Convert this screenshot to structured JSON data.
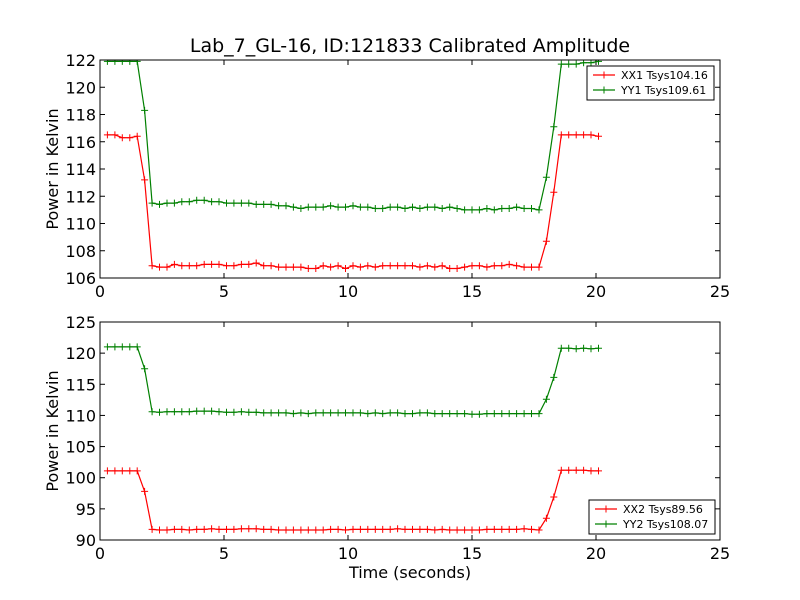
{
  "chart_data": [
    {
      "type": "line",
      "title": "Lab_7_GL-16, ID:121833 Calibrated Amplitude",
      "xlabel": "",
      "ylabel": "Power in Kelvin",
      "xlim": [
        0,
        25
      ],
      "ylim": [
        106,
        122
      ],
      "x_ticks": [
        0,
        5,
        10,
        15,
        20,
        25
      ],
      "y_ticks": [
        106,
        108,
        110,
        112,
        114,
        116,
        118,
        120,
        122
      ],
      "grid": false,
      "legend_position": "top-right",
      "x": [
        0.3,
        0.6,
        0.9,
        1.2,
        1.5,
        1.8,
        2.1,
        2.4,
        2.7,
        3.0,
        3.3,
        3.6,
        3.9,
        4.2,
        4.5,
        4.8,
        5.1,
        5.4,
        5.7,
        6.0,
        6.3,
        6.6,
        6.9,
        7.2,
        7.5,
        7.8,
        8.1,
        8.4,
        8.7,
        9.0,
        9.3,
        9.6,
        9.9,
        10.2,
        10.5,
        10.8,
        11.1,
        11.4,
        11.7,
        12.0,
        12.3,
        12.6,
        12.9,
        13.2,
        13.5,
        13.8,
        14.1,
        14.4,
        14.7,
        15.0,
        15.3,
        15.6,
        15.9,
        16.2,
        16.5,
        16.8,
        17.1,
        17.4,
        17.7,
        18.0,
        18.3,
        18.6,
        18.9,
        19.2,
        19.5,
        19.8,
        20.1
      ],
      "series": [
        {
          "name": "XX1 Tsys104.16",
          "color": "#ff0000",
          "values": [
            116.5,
            116.5,
            116.3,
            116.3,
            116.4,
            113.2,
            106.9,
            106.8,
            106.8,
            107.0,
            106.9,
            106.9,
            106.9,
            107.0,
            107.0,
            107.0,
            106.9,
            106.9,
            107.0,
            107.0,
            107.1,
            106.9,
            106.9,
            106.8,
            106.8,
            106.8,
            106.8,
            106.7,
            106.7,
            106.9,
            106.8,
            106.9,
            106.7,
            106.9,
            106.8,
            106.9,
            106.8,
            106.9,
            106.9,
            106.9,
            106.9,
            106.9,
            106.8,
            106.9,
            106.8,
            106.9,
            106.7,
            106.7,
            106.8,
            106.9,
            106.9,
            106.8,
            106.9,
            106.9,
            107.0,
            106.9,
            106.8,
            106.8,
            106.8,
            108.7,
            112.3,
            116.5,
            116.5,
            116.5,
            116.5,
            116.5,
            116.4
          ]
        },
        {
          "name": "YY1 Tsys109.61",
          "color": "#008000",
          "values": [
            121.9,
            121.9,
            121.9,
            121.9,
            121.9,
            118.3,
            111.5,
            111.4,
            111.5,
            111.5,
            111.6,
            111.6,
            111.7,
            111.7,
            111.6,
            111.6,
            111.5,
            111.5,
            111.5,
            111.5,
            111.4,
            111.4,
            111.4,
            111.3,
            111.3,
            111.2,
            111.1,
            111.2,
            111.2,
            111.2,
            111.3,
            111.2,
            111.2,
            111.3,
            111.2,
            111.2,
            111.1,
            111.1,
            111.2,
            111.2,
            111.1,
            111.2,
            111.1,
            111.2,
            111.2,
            111.1,
            111.2,
            111.1,
            111.0,
            111.0,
            111.0,
            111.1,
            111.0,
            111.1,
            111.1,
            111.2,
            111.1,
            111.1,
            111.0,
            113.4,
            117.1,
            121.7,
            121.7,
            121.7,
            121.8,
            121.8,
            121.9
          ]
        }
      ]
    },
    {
      "type": "line",
      "title": "",
      "xlabel": "Time (seconds)",
      "ylabel": "Power in Kelvin",
      "xlim": [
        0,
        25
      ],
      "ylim": [
        90,
        125
      ],
      "x_ticks": [
        0,
        5,
        10,
        15,
        20,
        25
      ],
      "y_ticks": [
        90,
        95,
        100,
        105,
        110,
        115,
        120,
        125
      ],
      "grid": false,
      "legend_position": "bottom-right",
      "x": [
        0.3,
        0.6,
        0.9,
        1.2,
        1.5,
        1.8,
        2.1,
        2.4,
        2.7,
        3.0,
        3.3,
        3.6,
        3.9,
        4.2,
        4.5,
        4.8,
        5.1,
        5.4,
        5.7,
        6.0,
        6.3,
        6.6,
        6.9,
        7.2,
        7.5,
        7.8,
        8.1,
        8.4,
        8.7,
        9.0,
        9.3,
        9.6,
        9.9,
        10.2,
        10.5,
        10.8,
        11.1,
        11.4,
        11.7,
        12.0,
        12.3,
        12.6,
        12.9,
        13.2,
        13.5,
        13.8,
        14.1,
        14.4,
        14.7,
        15.0,
        15.3,
        15.6,
        15.9,
        16.2,
        16.5,
        16.8,
        17.1,
        17.4,
        17.7,
        18.0,
        18.3,
        18.6,
        18.9,
        19.2,
        19.5,
        19.8,
        20.1
      ],
      "series": [
        {
          "name": "XX2 Tsys89.56",
          "color": "#ff0000",
          "values": [
            101.1,
            101.1,
            101.1,
            101.1,
            101.1,
            97.8,
            91.7,
            91.6,
            91.6,
            91.7,
            91.7,
            91.6,
            91.7,
            91.7,
            91.8,
            91.7,
            91.7,
            91.7,
            91.8,
            91.8,
            91.8,
            91.7,
            91.7,
            91.6,
            91.6,
            91.6,
            91.6,
            91.6,
            91.6,
            91.6,
            91.7,
            91.7,
            91.6,
            91.7,
            91.7,
            91.7,
            91.7,
            91.7,
            91.7,
            91.8,
            91.7,
            91.7,
            91.7,
            91.7,
            91.6,
            91.7,
            91.6,
            91.6,
            91.6,
            91.6,
            91.6,
            91.7,
            91.7,
            91.7,
            91.7,
            91.7,
            91.8,
            91.7,
            91.6,
            93.5,
            96.9,
            101.2,
            101.2,
            101.2,
            101.2,
            101.1,
            101.1
          ]
        },
        {
          "name": "YY2 Tsys108.07",
          "color": "#008000",
          "values": [
            121.0,
            121.0,
            121.0,
            121.0,
            121.0,
            117.5,
            110.6,
            110.5,
            110.6,
            110.6,
            110.6,
            110.6,
            110.7,
            110.7,
            110.7,
            110.6,
            110.5,
            110.5,
            110.6,
            110.5,
            110.5,
            110.4,
            110.4,
            110.4,
            110.4,
            110.3,
            110.4,
            110.3,
            110.4,
            110.4,
            110.4,
            110.4,
            110.4,
            110.4,
            110.4,
            110.3,
            110.4,
            110.3,
            110.4,
            110.4,
            110.3,
            110.3,
            110.4,
            110.4,
            110.3,
            110.3,
            110.3,
            110.3,
            110.3,
            110.2,
            110.2,
            110.3,
            110.3,
            110.3,
            110.3,
            110.3,
            110.3,
            110.3,
            110.3,
            112.6,
            116.1,
            120.8,
            120.8,
            120.7,
            120.8,
            120.7,
            120.8
          ]
        }
      ]
    }
  ]
}
